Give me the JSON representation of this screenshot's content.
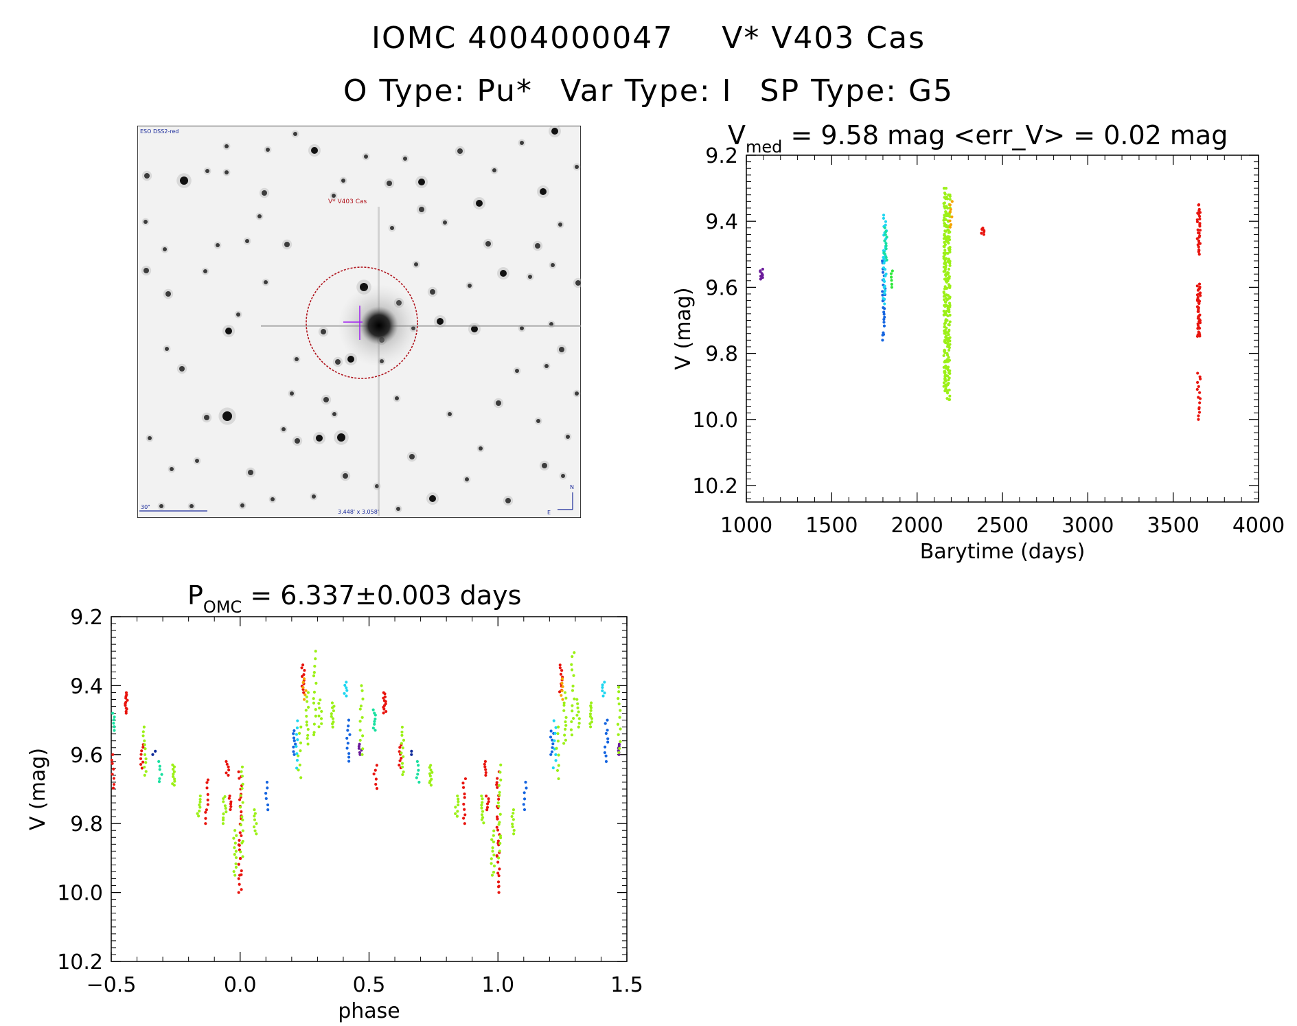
{
  "header": {
    "line1_id": "IOMC 4004000047",
    "line1_name": "V* V403 Cas",
    "line2_otype": "O Type: Pu*",
    "line2_vartype": "Var Type: I",
    "line2_sptype": "SP Type: G5"
  },
  "image": {
    "survey_label": "ESO DSS2-red",
    "target_label": "V* V403 Cas",
    "scale_label": "30\"",
    "fov_label": "3.448' x 3.058'",
    "north_label": "N",
    "east_label": "E"
  },
  "colors": {
    "purple": "#6a1b9a",
    "blue": "#1565e0",
    "cyan": "#1fd6f0",
    "teal": "#19e0a0",
    "green": "#2ee83a",
    "lime": "#9cf018",
    "orange": "#f5a400",
    "red": "#e8150f",
    "navy": "#0d2a9a"
  },
  "chart_data": [
    {
      "type": "scatter",
      "title_main": "V",
      "title_sub": "med",
      "title_rest": " = 9.58 mag <err_V> = 0.02 mag",
      "xlabel": "Barytime (days)",
      "ylabel": "V (mag)",
      "xlim": [
        1000,
        4000
      ],
      "ylim": [
        10.25,
        9.2
      ],
      "xticks": [
        1000,
        1500,
        2000,
        2500,
        3000,
        3500,
        4000
      ],
      "xtick_labels": [
        "1000",
        "1500",
        "2000",
        "2500",
        "3000",
        "3500",
        "4000"
      ],
      "yticks": [
        9.2,
        9.4,
        9.6,
        9.8,
        10.0,
        10.2
      ],
      "ytick_labels": [
        "9.2",
        "9.4",
        "9.6",
        "9.8",
        "10.0",
        "10.2"
      ],
      "clusters": [
        {
          "x": 1090,
          "y_min": 9.545,
          "y_max": 9.575,
          "n": 8,
          "color": "purple"
        },
        {
          "x": 1805,
          "y_min": 9.52,
          "y_max": 9.76,
          "n": 26,
          "color": "blue"
        },
        {
          "x": 1810,
          "y_min": 9.49,
          "y_max": 9.65,
          "n": 18,
          "color": "cyan"
        },
        {
          "x": 1812,
          "y_min": 9.38,
          "y_max": 9.52,
          "n": 16,
          "color": "cyan"
        },
        {
          "x": 1815,
          "y_min": 9.42,
          "y_max": 9.52,
          "n": 12,
          "color": "teal"
        },
        {
          "x": 1855,
          "y_min": 9.55,
          "y_max": 9.6,
          "n": 6,
          "color": "green"
        },
        {
          "x": 2165,
          "y_min": 9.3,
          "y_max": 9.92,
          "n": 150,
          "color": "lime"
        },
        {
          "x": 2185,
          "y_min": 9.32,
          "y_max": 9.94,
          "n": 120,
          "color": "lime"
        },
        {
          "x": 2200,
          "y_min": 9.34,
          "y_max": 9.42,
          "n": 8,
          "color": "orange"
        },
        {
          "x": 2385,
          "y_min": 9.42,
          "y_max": 9.44,
          "n": 6,
          "color": "red"
        },
        {
          "x": 3650,
          "y_min": 9.35,
          "y_max": 9.5,
          "n": 30,
          "color": "red"
        },
        {
          "x": 3650,
          "y_min": 9.59,
          "y_max": 9.75,
          "n": 45,
          "color": "red"
        },
        {
          "x": 3650,
          "y_min": 9.86,
          "y_max": 10.0,
          "n": 15,
          "color": "red"
        }
      ]
    },
    {
      "type": "scatter",
      "title_main": "P",
      "title_sub": "OMC",
      "title_rest": " = 6.337±0.003 days",
      "xlabel": "phase",
      "ylabel": "V (mag)",
      "xlim": [
        -0.5,
        1.5
      ],
      "ylim": [
        10.2,
        9.2
      ],
      "xticks": [
        -0.5,
        0.0,
        0.5,
        1.0,
        1.5
      ],
      "xtick_labels": [
        "−0.5",
        "0.0",
        "0.5",
        "1.0",
        "1.5"
      ],
      "yticks": [
        9.2,
        9.4,
        9.6,
        9.8,
        10.0,
        10.2
      ],
      "ytick_labels": [
        "9.2",
        "9.4",
        "9.6",
        "9.8",
        "10.0",
        "10.2"
      ],
      "clusters": [
        {
          "x": -0.495,
          "y_min": 9.6,
          "y_max": 9.7,
          "n": 8,
          "color": "red"
        },
        {
          "x": -0.49,
          "y_min": 9.48,
          "y_max": 9.53,
          "n": 6,
          "color": "teal"
        },
        {
          "x": -0.44,
          "y_min": 9.42,
          "y_max": 9.48,
          "n": 12,
          "color": "red"
        },
        {
          "x": -0.38,
          "y_min": 9.57,
          "y_max": 9.64,
          "n": 8,
          "color": "red"
        },
        {
          "x": -0.37,
          "y_min": 9.52,
          "y_max": 9.66,
          "n": 12,
          "color": "lime"
        },
        {
          "x": -0.335,
          "y_min": 9.59,
          "y_max": 9.6,
          "n": 2,
          "color": "navy"
        },
        {
          "x": -0.31,
          "y_min": 9.62,
          "y_max": 9.68,
          "n": 6,
          "color": "teal"
        },
        {
          "x": -0.26,
          "y_min": 9.63,
          "y_max": 9.69,
          "n": 10,
          "color": "lime"
        },
        {
          "x": -0.16,
          "y_min": 9.72,
          "y_max": 9.78,
          "n": 8,
          "color": "lime"
        },
        {
          "x": -0.13,
          "y_min": 9.67,
          "y_max": 9.8,
          "n": 10,
          "color": "red"
        },
        {
          "x": -0.06,
          "y_min": 9.72,
          "y_max": 9.8,
          "n": 10,
          "color": "lime"
        },
        {
          "x": -0.05,
          "y_min": 9.62,
          "y_max": 9.66,
          "n": 6,
          "color": "red"
        },
        {
          "x": -0.04,
          "y_min": 9.72,
          "y_max": 9.76,
          "n": 6,
          "color": "red"
        },
        {
          "x": -0.02,
          "y_min": 9.82,
          "y_max": 9.95,
          "n": 12,
          "color": "lime"
        },
        {
          "x": 0.0,
          "y_min": 9.65,
          "y_max": 10.0,
          "n": 30,
          "color": "red"
        },
        {
          "x": 0.005,
          "y_min": 9.63,
          "y_max": 9.9,
          "n": 16,
          "color": "lime"
        },
        {
          "x": 0.06,
          "y_min": 9.76,
          "y_max": 9.83,
          "n": 8,
          "color": "lime"
        },
        {
          "x": 0.105,
          "y_min": 9.68,
          "y_max": 9.76,
          "n": 6,
          "color": "blue"
        },
        {
          "x": 0.21,
          "y_min": 9.53,
          "y_max": 9.6,
          "n": 8,
          "color": "blue"
        },
        {
          "x": 0.22,
          "y_min": 9.5,
          "y_max": 9.64,
          "n": 8,
          "color": "cyan"
        },
        {
          "x": 0.23,
          "y_min": 9.52,
          "y_max": 9.67,
          "n": 8,
          "color": "lime"
        },
        {
          "x": 0.245,
          "y_min": 9.34,
          "y_max": 9.42,
          "n": 10,
          "color": "red"
        },
        {
          "x": 0.25,
          "y_min": 9.38,
          "y_max": 9.44,
          "n": 6,
          "color": "orange"
        },
        {
          "x": 0.26,
          "y_min": 9.42,
          "y_max": 9.57,
          "n": 12,
          "color": "lime"
        },
        {
          "x": 0.29,
          "y_min": 9.3,
          "y_max": 9.55,
          "n": 14,
          "color": "lime"
        },
        {
          "x": 0.31,
          "y_min": 9.44,
          "y_max": 9.52,
          "n": 8,
          "color": "lime"
        },
        {
          "x": 0.36,
          "y_min": 9.45,
          "y_max": 9.52,
          "n": 10,
          "color": "lime"
        },
        {
          "x": 0.41,
          "y_min": 9.39,
          "y_max": 9.43,
          "n": 6,
          "color": "cyan"
        },
        {
          "x": 0.42,
          "y_min": 9.5,
          "y_max": 9.62,
          "n": 10,
          "color": "blue"
        },
        {
          "x": 0.465,
          "y_min": 9.57,
          "y_max": 9.6,
          "n": 6,
          "color": "purple"
        },
        {
          "x": 0.47,
          "y_min": 9.4,
          "y_max": 9.6,
          "n": 12,
          "color": "lime"
        },
        {
          "x": 0.52,
          "y_min": 9.47,
          "y_max": 9.53,
          "n": 8,
          "color": "teal"
        },
        {
          "x": 0.525,
          "y_min": 9.63,
          "y_max": 9.7,
          "n": 6,
          "color": "red"
        },
        {
          "x": 0.56,
          "y_min": 9.42,
          "y_max": 9.48,
          "n": 12,
          "color": "red"
        },
        {
          "x": 0.62,
          "y_min": 9.57,
          "y_max": 9.64,
          "n": 8,
          "color": "red"
        },
        {
          "x": 0.63,
          "y_min": 9.52,
          "y_max": 9.66,
          "n": 12,
          "color": "lime"
        },
        {
          "x": 0.665,
          "y_min": 9.59,
          "y_max": 9.6,
          "n": 2,
          "color": "navy"
        },
        {
          "x": 0.69,
          "y_min": 9.62,
          "y_max": 9.68,
          "n": 6,
          "color": "teal"
        },
        {
          "x": 0.74,
          "y_min": 9.63,
          "y_max": 9.69,
          "n": 10,
          "color": "lime"
        },
        {
          "x": 0.84,
          "y_min": 9.72,
          "y_max": 9.78,
          "n": 8,
          "color": "lime"
        },
        {
          "x": 0.87,
          "y_min": 9.67,
          "y_max": 9.8,
          "n": 10,
          "color": "red"
        },
        {
          "x": 0.94,
          "y_min": 9.72,
          "y_max": 9.8,
          "n": 10,
          "color": "lime"
        },
        {
          "x": 0.95,
          "y_min": 9.62,
          "y_max": 9.66,
          "n": 6,
          "color": "red"
        },
        {
          "x": 0.96,
          "y_min": 9.72,
          "y_max": 9.76,
          "n": 6,
          "color": "red"
        },
        {
          "x": 0.98,
          "y_min": 9.82,
          "y_max": 9.95,
          "n": 12,
          "color": "lime"
        },
        {
          "x": 1.0,
          "y_min": 9.65,
          "y_max": 10.0,
          "n": 30,
          "color": "red"
        },
        {
          "x": 1.005,
          "y_min": 9.63,
          "y_max": 9.9,
          "n": 16,
          "color": "lime"
        },
        {
          "x": 1.06,
          "y_min": 9.76,
          "y_max": 9.83,
          "n": 8,
          "color": "lime"
        },
        {
          "x": 1.105,
          "y_min": 9.68,
          "y_max": 9.76,
          "n": 6,
          "color": "blue"
        },
        {
          "x": 1.21,
          "y_min": 9.53,
          "y_max": 9.6,
          "n": 8,
          "color": "blue"
        },
        {
          "x": 1.22,
          "y_min": 9.5,
          "y_max": 9.64,
          "n": 8,
          "color": "cyan"
        },
        {
          "x": 1.23,
          "y_min": 9.52,
          "y_max": 9.67,
          "n": 8,
          "color": "lime"
        },
        {
          "x": 1.245,
          "y_min": 9.34,
          "y_max": 9.42,
          "n": 10,
          "color": "red"
        },
        {
          "x": 1.25,
          "y_min": 9.38,
          "y_max": 9.44,
          "n": 6,
          "color": "orange"
        },
        {
          "x": 1.26,
          "y_min": 9.42,
          "y_max": 9.57,
          "n": 12,
          "color": "lime"
        },
        {
          "x": 1.29,
          "y_min": 9.3,
          "y_max": 9.55,
          "n": 14,
          "color": "lime"
        },
        {
          "x": 1.31,
          "y_min": 9.44,
          "y_max": 9.52,
          "n": 8,
          "color": "lime"
        },
        {
          "x": 1.36,
          "y_min": 9.45,
          "y_max": 9.52,
          "n": 10,
          "color": "lime"
        },
        {
          "x": 1.41,
          "y_min": 9.39,
          "y_max": 9.43,
          "n": 6,
          "color": "cyan"
        },
        {
          "x": 1.42,
          "y_min": 9.5,
          "y_max": 9.62,
          "n": 10,
          "color": "blue"
        },
        {
          "x": 1.465,
          "y_min": 9.57,
          "y_max": 9.6,
          "n": 6,
          "color": "purple"
        },
        {
          "x": 1.47,
          "y_min": 9.4,
          "y_max": 9.6,
          "n": 12,
          "color": "lime"
        }
      ]
    }
  ]
}
